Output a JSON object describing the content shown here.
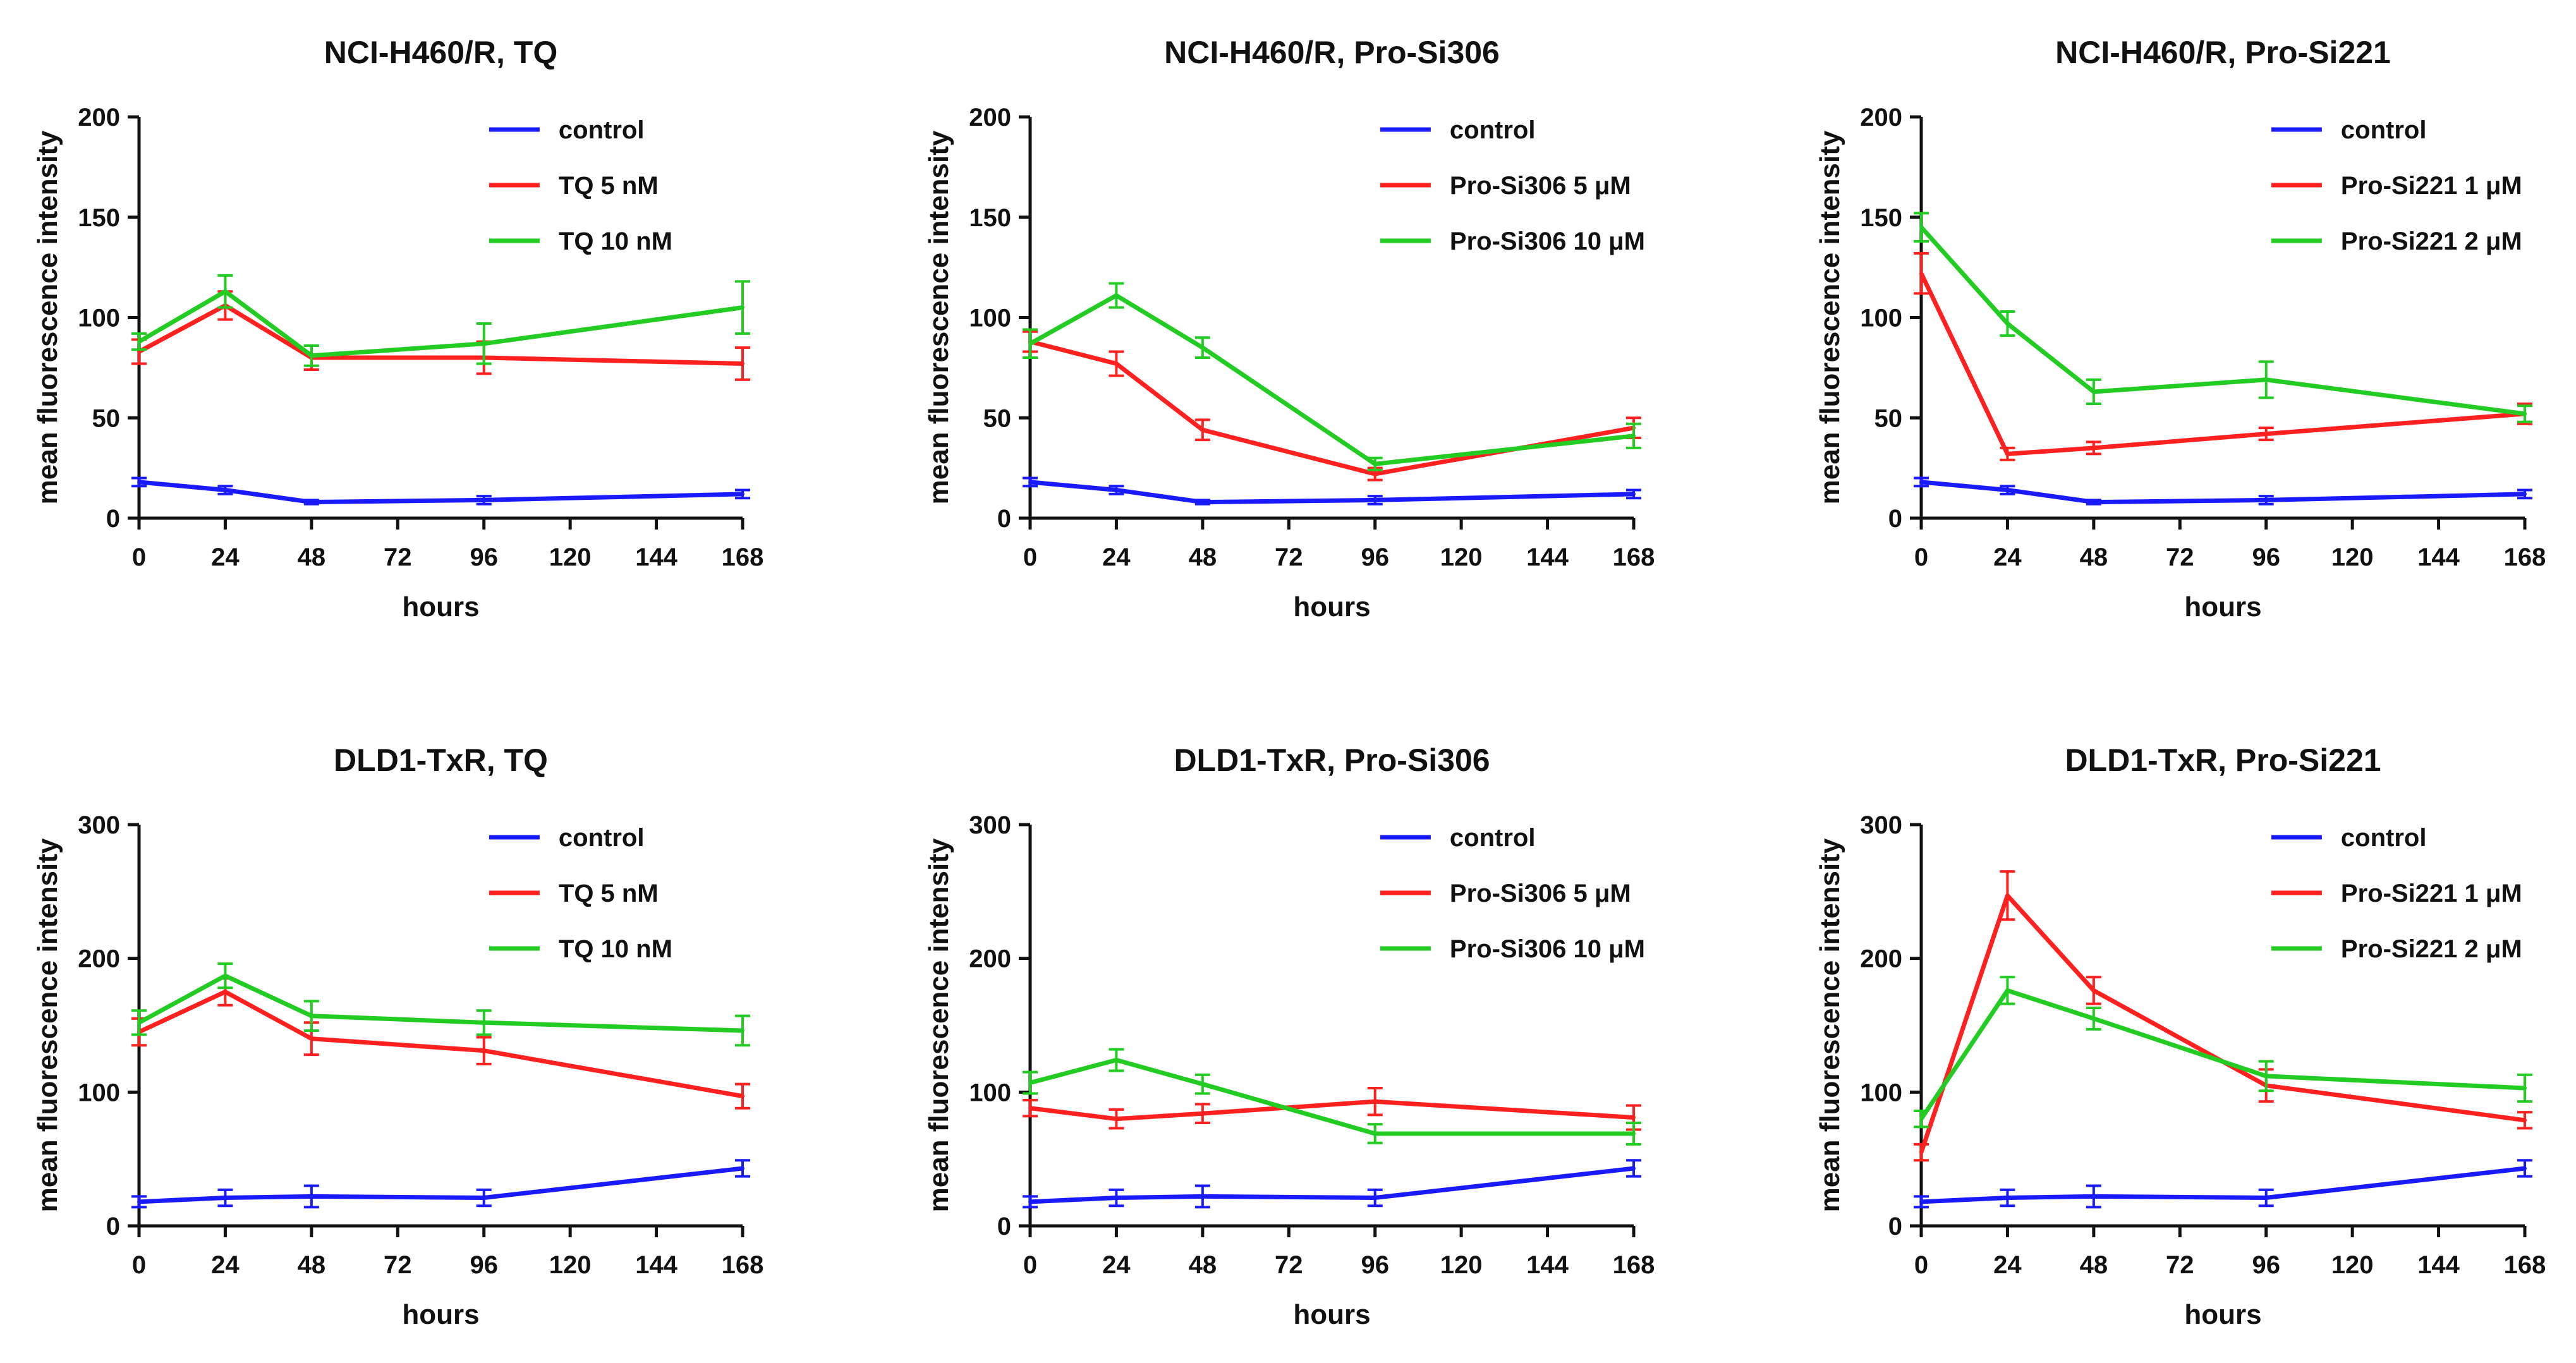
{
  "chart_data": [
    {
      "type": "line",
      "title": "NCI-H460/R, TQ",
      "xlabel": "hours",
      "ylabel": "mean fluorescence intensity",
      "xlim": [
        0,
        168
      ],
      "ylim": [
        0,
        200
      ],
      "xticks": [
        0,
        24,
        48,
        72,
        96,
        120,
        144,
        168
      ],
      "yticks": [
        0,
        50,
        100,
        150,
        200
      ],
      "legend_position": "top-right",
      "series": [
        {
          "name": "control",
          "color": "#1a1aff",
          "x": [
            0,
            24,
            48,
            96,
            168
          ],
          "values": [
            18,
            14,
            8,
            9,
            12
          ],
          "errors": [
            2,
            2,
            1,
            2,
            2
          ]
        },
        {
          "name": "TQ 5 nM",
          "color": "#ff2020",
          "x": [
            0,
            24,
            48,
            96,
            168
          ],
          "values": [
            83,
            106,
            80,
            80,
            77
          ],
          "errors": [
            6,
            7,
            6,
            8,
            8
          ]
        },
        {
          "name": "TQ 10 nM",
          "color": "#22cc22",
          "x": [
            0,
            24,
            48,
            96,
            168
          ],
          "values": [
            88,
            113,
            81,
            87,
            105
          ],
          "errors": [
            4,
            8,
            5,
            10,
            13
          ]
        }
      ]
    },
    {
      "type": "line",
      "title": "NCI-H460/R, Pro-Si306",
      "xlabel": "hours",
      "ylabel": "mean fluorescence intensity",
      "xlim": [
        0,
        168
      ],
      "ylim": [
        0,
        200
      ],
      "xticks": [
        0,
        24,
        48,
        72,
        96,
        120,
        144,
        168
      ],
      "yticks": [
        0,
        50,
        100,
        150,
        200
      ],
      "legend_position": "top-right",
      "series": [
        {
          "name": "control",
          "color": "#1a1aff",
          "x": [
            0,
            24,
            48,
            96,
            168
          ],
          "values": [
            18,
            14,
            8,
            9,
            12
          ],
          "errors": [
            2,
            2,
            1,
            2,
            2
          ]
        },
        {
          "name": "Pro-Si306 5 μM",
          "color": "#ff2020",
          "x": [
            0,
            24,
            48,
            96,
            168
          ],
          "values": [
            88,
            77,
            44,
            22,
            45
          ],
          "errors": [
            5,
            6,
            5,
            3,
            5
          ]
        },
        {
          "name": "Pro-Si306 10 μM",
          "color": "#22cc22",
          "x": [
            0,
            24,
            48,
            96,
            168
          ],
          "values": [
            87,
            111,
            85,
            27,
            41
          ],
          "errors": [
            7,
            6,
            5,
            3,
            6
          ]
        }
      ]
    },
    {
      "type": "line",
      "title": "NCI-H460/R, Pro-Si221",
      "xlabel": "hours",
      "ylabel": "mean fluorescence intensity",
      "xlim": [
        0,
        168
      ],
      "ylim": [
        0,
        200
      ],
      "xticks": [
        0,
        24,
        48,
        72,
        96,
        120,
        144,
        168
      ],
      "yticks": [
        0,
        50,
        100,
        150,
        200
      ],
      "legend_position": "top-right",
      "series": [
        {
          "name": "control",
          "color": "#1a1aff",
          "x": [
            0,
            24,
            48,
            96,
            168
          ],
          "values": [
            18,
            14,
            8,
            9,
            12
          ],
          "errors": [
            2,
            2,
            1,
            2,
            2
          ]
        },
        {
          "name": "Pro-Si221 1 μM",
          "color": "#ff2020",
          "x": [
            0,
            24,
            48,
            96,
            168
          ],
          "values": [
            122,
            32,
            35,
            42,
            52
          ],
          "errors": [
            10,
            3,
            3,
            3,
            5
          ]
        },
        {
          "name": "Pro-Si221 2 μM",
          "color": "#22cc22",
          "x": [
            0,
            24,
            48,
            96,
            168
          ],
          "values": [
            145,
            97,
            63,
            69,
            52
          ],
          "errors": [
            7,
            6,
            6,
            9,
            4
          ]
        }
      ]
    },
    {
      "type": "line",
      "title": "DLD1-TxR, TQ",
      "xlabel": "hours",
      "ylabel": "mean fluorescence intensity",
      "xlim": [
        0,
        168
      ],
      "ylim": [
        0,
        300
      ],
      "xticks": [
        0,
        24,
        48,
        72,
        96,
        120,
        144,
        168
      ],
      "yticks": [
        0,
        100,
        200,
        300
      ],
      "legend_position": "top-right",
      "series": [
        {
          "name": "control",
          "color": "#1a1aff",
          "x": [
            0,
            24,
            48,
            96,
            168
          ],
          "values": [
            18,
            21,
            22,
            21,
            43
          ],
          "errors": [
            4,
            6,
            8,
            6,
            6
          ]
        },
        {
          "name": "TQ 5 nM",
          "color": "#ff2020",
          "x": [
            0,
            24,
            48,
            96,
            168
          ],
          "values": [
            145,
            175,
            140,
            131,
            97
          ],
          "errors": [
            10,
            10,
            12,
            10,
            9
          ]
        },
        {
          "name": "TQ 10 nM",
          "color": "#22cc22",
          "x": [
            0,
            24,
            48,
            96,
            168
          ],
          "values": [
            152,
            187,
            157,
            152,
            146
          ],
          "errors": [
            9,
            9,
            11,
            9,
            11
          ]
        }
      ]
    },
    {
      "type": "line",
      "title": "DLD1-TxR, Pro-Si306",
      "xlabel": "hours",
      "ylabel": "mean fluorescence intensity",
      "xlim": [
        0,
        168
      ],
      "ylim": [
        0,
        300
      ],
      "xticks": [
        0,
        24,
        48,
        72,
        96,
        120,
        144,
        168
      ],
      "yticks": [
        0,
        100,
        200,
        300
      ],
      "legend_position": "top-right",
      "series": [
        {
          "name": "control",
          "color": "#1a1aff",
          "x": [
            0,
            24,
            48,
            96,
            168
          ],
          "values": [
            18,
            21,
            22,
            21,
            43
          ],
          "errors": [
            4,
            6,
            8,
            6,
            6
          ]
        },
        {
          "name": "Pro-Si306 5 μM",
          "color": "#ff2020",
          "x": [
            0,
            24,
            48,
            96,
            168
          ],
          "values": [
            88,
            80,
            84,
            93,
            81
          ],
          "errors": [
            6,
            7,
            7,
            10,
            9
          ]
        },
        {
          "name": "Pro-Si306 10 μM",
          "color": "#22cc22",
          "x": [
            0,
            24,
            48,
            96,
            168
          ],
          "values": [
            107,
            124,
            106,
            69,
            69
          ],
          "errors": [
            8,
            8,
            7,
            7,
            8
          ]
        }
      ]
    },
    {
      "type": "line",
      "title": "DLD1-TxR, Pro-Si221",
      "xlabel": "hours",
      "ylabel": "mean fluorescence intensity",
      "xlim": [
        0,
        168
      ],
      "ylim": [
        0,
        300
      ],
      "xticks": [
        0,
        24,
        48,
        72,
        96,
        120,
        144,
        168
      ],
      "yticks": [
        0,
        100,
        200,
        300
      ],
      "legend_position": "top-right",
      "series": [
        {
          "name": "control",
          "color": "#1a1aff",
          "x": [
            0,
            24,
            48,
            96,
            168
          ],
          "values": [
            18,
            21,
            22,
            21,
            43
          ],
          "errors": [
            4,
            6,
            8,
            6,
            6
          ]
        },
        {
          "name": "Pro-Si221 1 μM",
          "color": "#ff2020",
          "x": [
            0,
            24,
            48,
            96,
            168
          ],
          "values": [
            55,
            247,
            176,
            105,
            79
          ],
          "errors": [
            6,
            18,
            10,
            12,
            6
          ]
        },
        {
          "name": "Pro-Si221 2 μM",
          "color": "#22cc22",
          "x": [
            0,
            24,
            48,
            96,
            168
          ],
          "values": [
            80,
            176,
            155,
            112,
            103
          ],
          "errors": [
            6,
            10,
            8,
            11,
            10
          ]
        }
      ]
    }
  ]
}
